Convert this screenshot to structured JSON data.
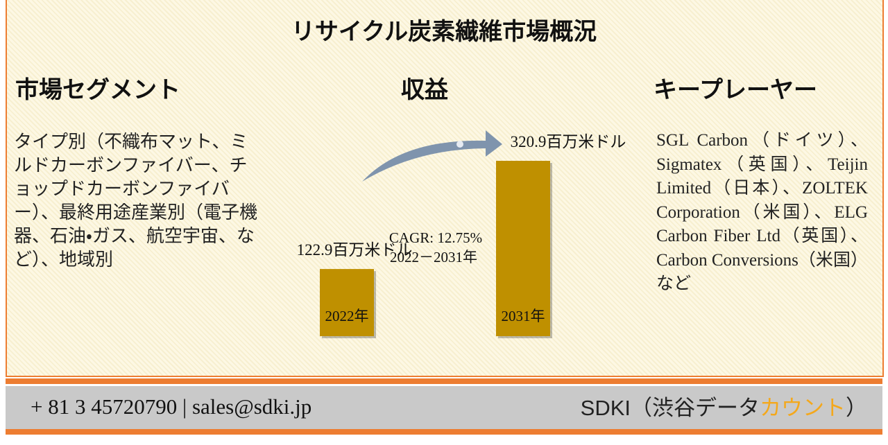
{
  "title": "リサイクル炭素繊維市場概況",
  "segments": {
    "heading": "市場セグメント",
    "text": "タイプ別（不織布マット、ミルドカーボンファイバー、チョップドカーボンファイバー）、最終用途産業別（電子機器、石油・ガス、航空宇宙、など）、地域別"
  },
  "chart_data": {
    "type": "bar",
    "title": "収益",
    "categories": [
      "2022年",
      "2031年"
    ],
    "values": [
      122.9,
      320.9
    ],
    "value_labels": [
      "122.9百万米ドル",
      "320.9百万米ドル"
    ],
    "color": "#bf9000",
    "annotation": "CAGR: 12.75%",
    "annotation_period": "2022－2031年"
  },
  "players": {
    "heading": "キープレーヤー",
    "text": "SGL Carbon（ドイツ）、Sigmatex（英国）、Teijin Limited（日本）、ZOLTEK Corporation（米国）、ELG Carbon Fiber Ltd（英国）、Carbon Conversions（米国）など"
  },
  "footer": {
    "contact": "+ 81 3 45720790 | sales@sdki.jp",
    "brand": "SDKI（渋谷データ",
    "brand_accent": "カウント",
    "brand_end": "）"
  }
}
